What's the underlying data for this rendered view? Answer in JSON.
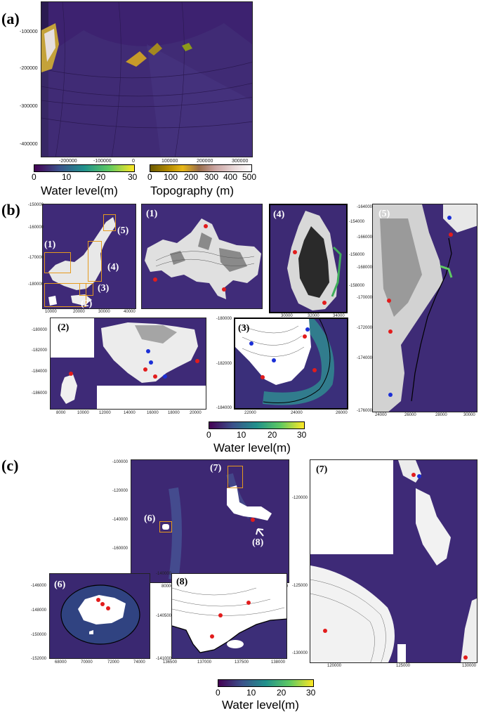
{
  "labels": {
    "a": "(a)",
    "b": "(b)",
    "c": "(c)"
  },
  "colorbars": {
    "water_a": {
      "title": "Water level(m)",
      "ticks": [
        "0",
        "10",
        "20",
        "30"
      ]
    },
    "topo_a": {
      "title": "Topography (m)",
      "ticks": [
        "0",
        "100",
        "200",
        "300",
        "400",
        "500"
      ]
    },
    "water_b": {
      "title": "Water level(m)",
      "ticks": [
        "0",
        "10",
        "20",
        "30"
      ]
    },
    "water_c": {
      "title": "Water level(m)",
      "ticks": [
        "0",
        "10",
        "20",
        "30"
      ]
    }
  },
  "panel_a": {
    "yticks": [
      "-100000",
      "-200000",
      "-300000",
      "-400000"
    ],
    "xticks": [
      "-200000",
      "-100000",
      "0",
      "100000",
      "200000",
      "300000"
    ]
  },
  "panel_b": {
    "main": {
      "yticks": [
        "-150000",
        "-160000",
        "-170000",
        "-180000"
      ],
      "xticks": [
        "10000",
        "20000",
        "30000",
        "40000"
      ],
      "inset_labels": [
        "(1)",
        "(2)",
        "(3)",
        "(4)",
        "(5)"
      ]
    },
    "p1": {
      "label": "(1)"
    },
    "p4": {
      "label": "(4)",
      "yticks": [
        "-154000",
        "-156000",
        "-158000"
      ],
      "xticks": [
        "30000",
        "32000",
        "34000"
      ]
    },
    "p5": {
      "label": "(5)",
      "yticks": [
        "-164000",
        "-166000",
        "-168000",
        "-170000",
        "-172000",
        "-174000",
        "-176000"
      ],
      "xticks": [
        "24000",
        "26000",
        "28000",
        "30000"
      ]
    },
    "p2": {
      "label": "(2)",
      "yticks": [
        "-180000",
        "-182000",
        "-184000",
        "-186000"
      ],
      "xticks": [
        "8000",
        "10000",
        "12000",
        "14000",
        "16000",
        "18000",
        "20000"
      ]
    },
    "p3": {
      "label": "(3)",
      "yticks": [
        "-180000",
        "-182000",
        "-184000"
      ],
      "xticks": [
        "22000",
        "24000",
        "26000"
      ]
    }
  },
  "panel_c": {
    "main": {
      "yticks": [
        "-100000",
        "-120000",
        "-140000",
        "-160000"
      ],
      "xticks": [
        "60000",
        "80000",
        "100000",
        "120000",
        "140000",
        "160000"
      ],
      "inset_labels": [
        "(6)",
        "(7)",
        "(8)"
      ]
    },
    "p7": {
      "label": "(7)",
      "yticks": [
        "-120000",
        "-125000",
        "-130000"
      ],
      "xticks": [
        "120000",
        "125000",
        "130000"
      ]
    },
    "p6": {
      "label": "(6)",
      "yticks": [
        "-146000",
        "-148000",
        "-150000",
        "-152000"
      ],
      "xticks": [
        "68000",
        "70000",
        "72000",
        "74000"
      ]
    },
    "p8": {
      "label": "(8)",
      "yticks": [
        "-140000",
        "-140500",
        "-141000"
      ],
      "xticks": [
        "136500",
        "137000",
        "137500",
        "138000"
      ]
    }
  }
}
